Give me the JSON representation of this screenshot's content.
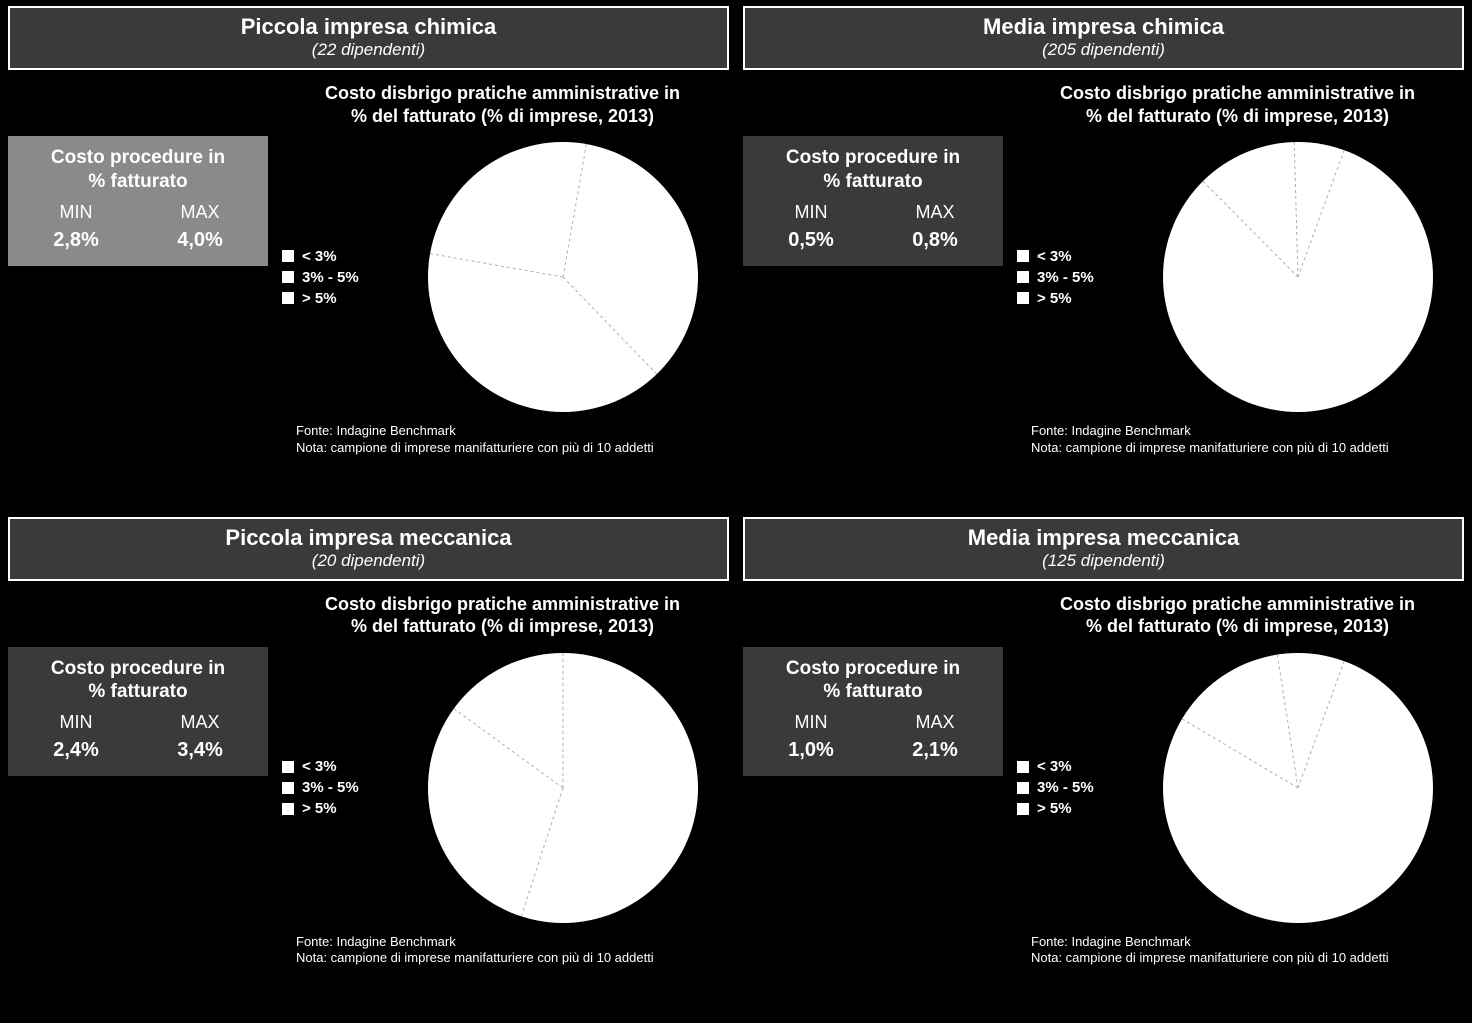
{
  "common": {
    "chart_title_line1": "Costo disbrigo pratiche amministrative in",
    "chart_title_line2": "% del fatturato (% di imprese, 2013)",
    "stat_title_line1": "Costo procedure in",
    "stat_title_line2": "% fatturato",
    "min_label": "MIN",
    "max_label": "MAX",
    "legend": [
      "< 3%",
      "3% - 5%",
      "> 5%"
    ],
    "source": "Fonte: Indagine Benchmark",
    "note": "Nota: campione di imprese manifatturiere con più di 10 addetti",
    "pie_radius": 135,
    "pie_fill": "#ffffff",
    "pie_divider_stroke": "#b0b0b0",
    "pie_divider_dash": "3 3",
    "pie_divider_width": 1,
    "svg_size": 280,
    "stat_box_bg_dark": "#3a3a3a",
    "stat_box_bg_highlight": "#8a8a8a"
  },
  "panels": [
    {
      "id": "p0",
      "title": "Piccola impresa chimica",
      "subtitle": "(22 dipendenti)",
      "min": "2,8%",
      "max": "4,0%",
      "stat_bg": "#8a8a8a",
      "pie_slices": [
        35,
        40,
        25
      ],
      "pie_start_angle": -80
    },
    {
      "id": "p1",
      "title": "Media impresa chimica",
      "subtitle": "(205 dipendenti)",
      "min": "0,5%",
      "max": "0,8%",
      "stat_bg": "#3a3a3a",
      "pie_slices": [
        82,
        12,
        6
      ],
      "pie_start_angle": -70
    },
    {
      "id": "p2",
      "title": "Piccola impresa meccanica",
      "subtitle": "(20 dipendenti)",
      "min": "2,4%",
      "max": "3,4%",
      "stat_bg": "#3a3a3a",
      "pie_slices": [
        55,
        30,
        15
      ],
      "pie_start_angle": -90
    },
    {
      "id": "p3",
      "title": "Media impresa meccanica",
      "subtitle": "(125 dipendenti)",
      "min": "1,0%",
      "max": "2,1%",
      "stat_bg": "#3a3a3a",
      "pie_slices": [
        78,
        14,
        8
      ],
      "pie_start_angle": -70
    }
  ]
}
